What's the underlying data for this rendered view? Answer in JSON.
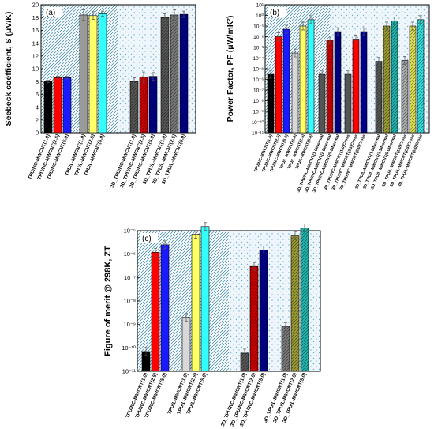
{
  "chart_data": [
    {
      "type": "bar",
      "panel_label": "(a)",
      "ylabel": "Seebeck coefficient, S (μV/K)",
      "ylim": [
        0,
        20
      ],
      "yticks": [
        "0",
        "2",
        "4",
        "6",
        "8",
        "10",
        "12",
        "14",
        "16",
        "18",
        "20"
      ],
      "y_scale": "linear",
      "groups": [
        {
          "bars": [
            {
              "label": "TPU/NC-MWCNT(1.0)",
              "value": 8.0,
              "err": 0.2,
              "color": "#000000",
              "pattern": "solid"
            },
            {
              "label": "TPU/NC-MWCNT(2.5)",
              "value": 8.6,
              "err": 0.2,
              "color": "#ff0000",
              "pattern": "solid"
            },
            {
              "label": "TPU/NC-MWCNT(5.0)",
              "value": 8.6,
              "err": 0.2,
              "color": "#1a1aff",
              "pattern": "solid"
            }
          ]
        },
        {
          "bars": [
            {
              "label": "TPU/L-MWCNT(1.0)",
              "value": 18.4,
              "err": 0.8,
              "color": "#9a9a9a",
              "pattern": "solid"
            },
            {
              "label": "TPU/L-MWCNT(2.5)",
              "value": 18.3,
              "err": 0.6,
              "color": "#ffff66",
              "pattern": "solid"
            },
            {
              "label": "TPU/L-MWCNT(5.0)",
              "value": 18.6,
              "err": 0.4,
              "color": "#33ffff",
              "pattern": "solid"
            }
          ]
        },
        {
          "bars": [
            {
              "label": "3D_TPU/NC-MWCNT(1.0)",
              "value": 8.0,
              "err": 0.6,
              "color": "#555555",
              "pattern": "hatch"
            },
            {
              "label": "3D_TPU/NC-MWCNT(2.5)",
              "value": 8.7,
              "err": 0.8,
              "color": "#cc0000",
              "pattern": "hatch"
            },
            {
              "label": "3D_TPU/NC-MWCNT(5.0)",
              "value": 8.8,
              "err": 0.6,
              "color": "#00008b",
              "pattern": "hatch"
            }
          ]
        },
        {
          "bars": [
            {
              "label": "3D_TPU/L-MWCNT(1.0)",
              "value": 18.0,
              "err": 0.6,
              "color": "#555555",
              "pattern": "hatch"
            },
            {
              "label": "3D_TPU/L-MWCNT(2.5)",
              "value": 18.4,
              "err": 0.8,
              "color": "#777777",
              "pattern": "hatch"
            },
            {
              "label": "3D_TPU/L-MWCNT(5.0)",
              "value": 18.5,
              "err": 0.5,
              "color": "#00008b",
              "pattern": "hatch"
            }
          ]
        }
      ]
    },
    {
      "type": "bar",
      "panel_label": "(b)",
      "ylabel": "Power Factor, PF (μW/mK²)",
      "y_scale": "log",
      "ylim_exp": [
        -11,
        1
      ],
      "yticks": [
        "10⁻¹¹",
        "10⁻¹⁰",
        "10⁻⁹",
        "10⁻⁸",
        "10⁻⁷",
        "10⁻⁶",
        "10⁻⁵",
        "10⁻⁴",
        "10⁻³",
        "10⁻²",
        "10⁻¹",
        "10⁰",
        "10¹"
      ],
      "groups": [
        {
          "bars": [
            {
              "label": "TPU/NC-MWCNT(1.0)",
              "value": 3e-06,
              "color": "#000000",
              "pattern": "solid"
            },
            {
              "label": "TPU/NC-MWCNT(2.5)",
              "value": 0.01,
              "color": "#ff0000",
              "pattern": "solid"
            },
            {
              "label": "TPU/NC-MWCNT(5.0)",
              "value": 0.05,
              "color": "#1a1aff",
              "pattern": "solid"
            }
          ]
        },
        {
          "bars": [
            {
              "label": "TPU/L-MWCNT(1.0)",
              "value": 0.0003,
              "color": "#d8d8d8",
              "pattern": "solid"
            },
            {
              "label": "TPU/L-MWCNT(2.5)",
              "value": 0.1,
              "color": "#ffff66",
              "pattern": "solid"
            },
            {
              "label": "TPU/L-MWCNT(5.0)",
              "value": 0.4,
              "color": "#33ffff",
              "pattern": "solid"
            }
          ]
        },
        {
          "bars": [
            {
              "label": "3D_TPU/NC-MWCNT(1.0)Normal",
              "value": 3e-06,
              "color": "#555555",
              "pattern": "solid"
            },
            {
              "label": "3D_TPU/NC-MWCNT(2.5)Normal",
              "value": 0.005,
              "color": "#cc0000",
              "pattern": "hatch"
            },
            {
              "label": "3D_TPU/NC-MWCNT(5.0)Normal",
              "value": 0.03,
              "color": "#00008b",
              "pattern": "hatch"
            }
          ]
        },
        {
          "bars": [
            {
              "label": "3D_TPU/NC-MWCNT(1.0)Cross",
              "value": 3e-06,
              "color": "#555555",
              "pattern": "solid"
            },
            {
              "label": "3D_TPU/NC-MWCNT(2.5)Cross",
              "value": 0.006,
              "color": "#ff0000",
              "pattern": "solid"
            },
            {
              "label": "3D_TPU/NC-MWCNT(5.0)Cross",
              "value": 0.03,
              "color": "#00008b",
              "pattern": "solid"
            }
          ]
        },
        {
          "bars": [
            {
              "label": "3D_TPU/L-MWCNT(1.0)Normal",
              "value": 5e-05,
              "color": "#555555",
              "pattern": "hatch"
            },
            {
              "label": "3D_TPU/L-MWCNT(2.5)Normal",
              "value": 0.1,
              "color": "#999933",
              "pattern": "hatch"
            },
            {
              "label": "3D_TPU/L-MWCNT(5.0)Normal",
              "value": 0.3,
              "color": "#20b2aa",
              "pattern": "hatch"
            }
          ]
        },
        {
          "bars": [
            {
              "label": "3D_TPU/L-MWCNT(1.0)Cross",
              "value": 6e-05,
              "color": "#aaaaaa",
              "pattern": "hatch"
            },
            {
              "label": "3D_TPU/L-MWCNT(2.5)Cross",
              "value": 0.1,
              "color": "#dddd55",
              "pattern": "hatch"
            },
            {
              "label": "3D_TPU/L-MWCNT(5.0)Cross",
              "value": 0.4,
              "color": "#33dddd",
              "pattern": "hatch"
            }
          ]
        }
      ]
    },
    {
      "type": "bar",
      "panel_label": "(c)",
      "ylabel": "Figure of merit @ 298K, ZT",
      "y_scale": "log",
      "ylim_exp": [
        -11,
        -5
      ],
      "yticks": [
        "10⁻¹¹",
        "10⁻¹⁰",
        "10⁻⁹",
        "10⁻⁸",
        "10⁻⁷",
        "10⁻⁶",
        "10⁻⁵"
      ],
      "groups": [
        {
          "bars": [
            {
              "label": "TPU/NC-MWCNT(1.0)",
              "value": 7e-11,
              "color": "#000000",
              "pattern": "solid"
            },
            {
              "label": "TPU/NC-MWCNT(2.5)",
              "value": 1.2e-06,
              "color": "#ff0000",
              "pattern": "solid"
            },
            {
              "label": "TPU/NC-MWCNT(5.0)",
              "value": 2.5e-06,
              "color": "#1a1aff",
              "pattern": "solid"
            }
          ]
        },
        {
          "bars": [
            {
              "label": "TPU/L-MWCNT(1.0)",
              "value": 2e-09,
              "color": "#d8d8d8",
              "pattern": "solid"
            },
            {
              "label": "TPU/L-MWCNT(2.5)",
              "value": 7e-06,
              "color": "#ffff66",
              "pattern": "solid"
            },
            {
              "label": "TPU/L-MWCNT(5.0)",
              "value": 1.5e-05,
              "color": "#33ffff",
              "pattern": "solid"
            }
          ]
        },
        {
          "bars": [
            {
              "label": "3D_TPU/NC-MWCNT(1.0)",
              "value": 6e-11,
              "color": "#555555",
              "pattern": "hatch"
            },
            {
              "label": "3D_TPU/NC-MWCNT(2.5)",
              "value": 3e-07,
              "color": "#cc0000",
              "pattern": "hatch"
            },
            {
              "label": "3D_TPU/NC-MWCNT(5.0)",
              "value": 1.5e-06,
              "color": "#00008b",
              "pattern": "hatch"
            }
          ]
        },
        {
          "bars": [
            {
              "label": "3D_TPU/L-MWCNT(1.0)",
              "value": 8e-10,
              "color": "#777777",
              "pattern": "hatch"
            },
            {
              "label": "3D_TPU/L-MWCNT(2.5)",
              "value": 6e-06,
              "color": "#999933",
              "pattern": "hatch"
            },
            {
              "label": "3D_TPU/L-MWCNT(5.0)",
              "value": 1.3e-05,
              "color": "#20b2aa",
              "pattern": "hatch"
            }
          ]
        }
      ]
    }
  ]
}
